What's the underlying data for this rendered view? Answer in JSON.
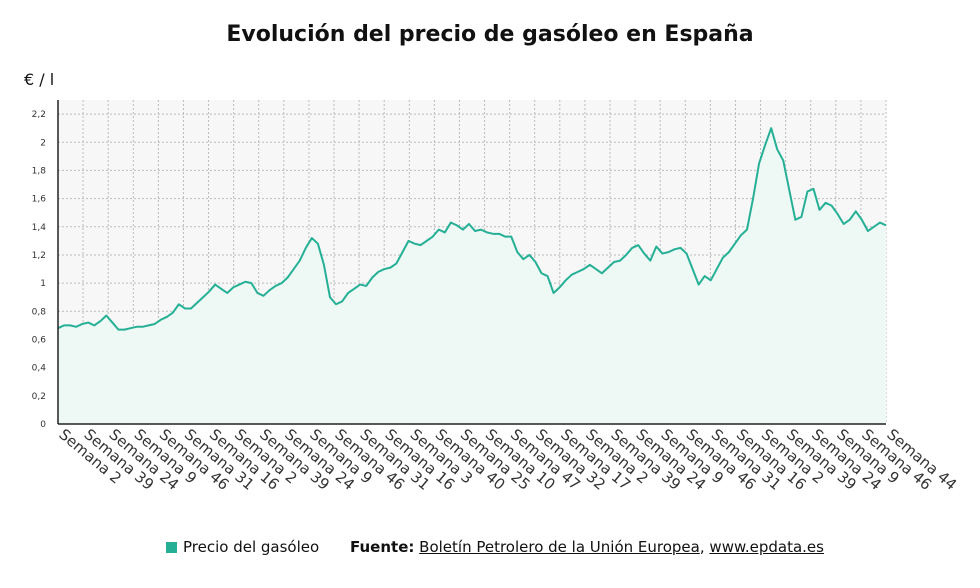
{
  "chart_data": {
    "type": "area",
    "title": "Evolución del precio de gasóleo en España",
    "ylabel": "€ / l",
    "xlabel": "",
    "ylim": [
      0,
      2.3
    ],
    "grid": true,
    "yticks": [
      0,
      0.2,
      0.4,
      0.6,
      0.8,
      1,
      1.2,
      1.4,
      1.6,
      1.8,
      2,
      2.2
    ],
    "ytick_labels": [
      "0",
      "0,2",
      "0,4",
      "0,6",
      "0,8",
      "1",
      "1,2",
      "1,4",
      "1,6",
      "1,8",
      "2",
      "2,2"
    ],
    "x_tick_labels": [
      "Semana 2",
      "Semana 39",
      "Semana 24",
      "Semana 9",
      "Semana 46",
      "Semana 31",
      "Semana 16",
      "Semana 2",
      "Semana 39",
      "Semana 24",
      "Semana 9",
      "Semana 46",
      "Semana 31",
      "Semana 16",
      "Semana 3",
      "Semana 40",
      "Semana 25",
      "Semana 10",
      "Semana 47",
      "Semana 32",
      "Semana 17",
      "Semana 2",
      "Semana 39",
      "Semana 24",
      "Semana 9",
      "Semana 46",
      "Semana 31",
      "Semana 16",
      "Semana 2",
      "Semana 39",
      "Semana 24",
      "Semana 9",
      "Semana 46",
      "Semana 44"
    ],
    "series": [
      {
        "name": "Precio del gasóleo",
        "color": "#25b096",
        "fill": "#eef8f5",
        "values": [
          0.68,
          0.7,
          0.7,
          0.69,
          0.71,
          0.72,
          0.7,
          0.73,
          0.77,
          0.72,
          0.67,
          0.67,
          0.68,
          0.69,
          0.69,
          0.7,
          0.71,
          0.74,
          0.76,
          0.79,
          0.85,
          0.82,
          0.82,
          0.86,
          0.9,
          0.94,
          0.99,
          0.96,
          0.93,
          0.97,
          0.99,
          1.01,
          1.0,
          0.93,
          0.91,
          0.95,
          0.98,
          1.0,
          1.04,
          1.1,
          1.16,
          1.25,
          1.32,
          1.28,
          1.13,
          0.9,
          0.85,
          0.87,
          0.93,
          0.96,
          0.99,
          0.98,
          1.04,
          1.08,
          1.1,
          1.11,
          1.14,
          1.22,
          1.3,
          1.28,
          1.27,
          1.3,
          1.33,
          1.38,
          1.36,
          1.43,
          1.41,
          1.38,
          1.42,
          1.37,
          1.38,
          1.36,
          1.35,
          1.35,
          1.33,
          1.33,
          1.22,
          1.17,
          1.2,
          1.15,
          1.07,
          1.05,
          0.93,
          0.97,
          1.02,
          1.06,
          1.08,
          1.1,
          1.13,
          1.1,
          1.07,
          1.11,
          1.15,
          1.16,
          1.2,
          1.25,
          1.27,
          1.21,
          1.16,
          1.26,
          1.21,
          1.22,
          1.24,
          1.25,
          1.21,
          1.1,
          0.99,
          1.05,
          1.02,
          1.1,
          1.18,
          1.22,
          1.28,
          1.34,
          1.38,
          1.6,
          1.85,
          1.98,
          2.1,
          1.95,
          1.87,
          1.66,
          1.45,
          1.47,
          1.65,
          1.67,
          1.52,
          1.57,
          1.55,
          1.49,
          1.42,
          1.45,
          1.51,
          1.45,
          1.37,
          1.4,
          1.43,
          1.41
        ]
      }
    ]
  },
  "legend": {
    "label": "Precio del gasóleo",
    "color": "#25b096"
  },
  "source": {
    "label": "Fuente:",
    "name": "Boletín Petrolero de la Unión Europea",
    "separator": ",",
    "site": "www.epdata.es"
  }
}
